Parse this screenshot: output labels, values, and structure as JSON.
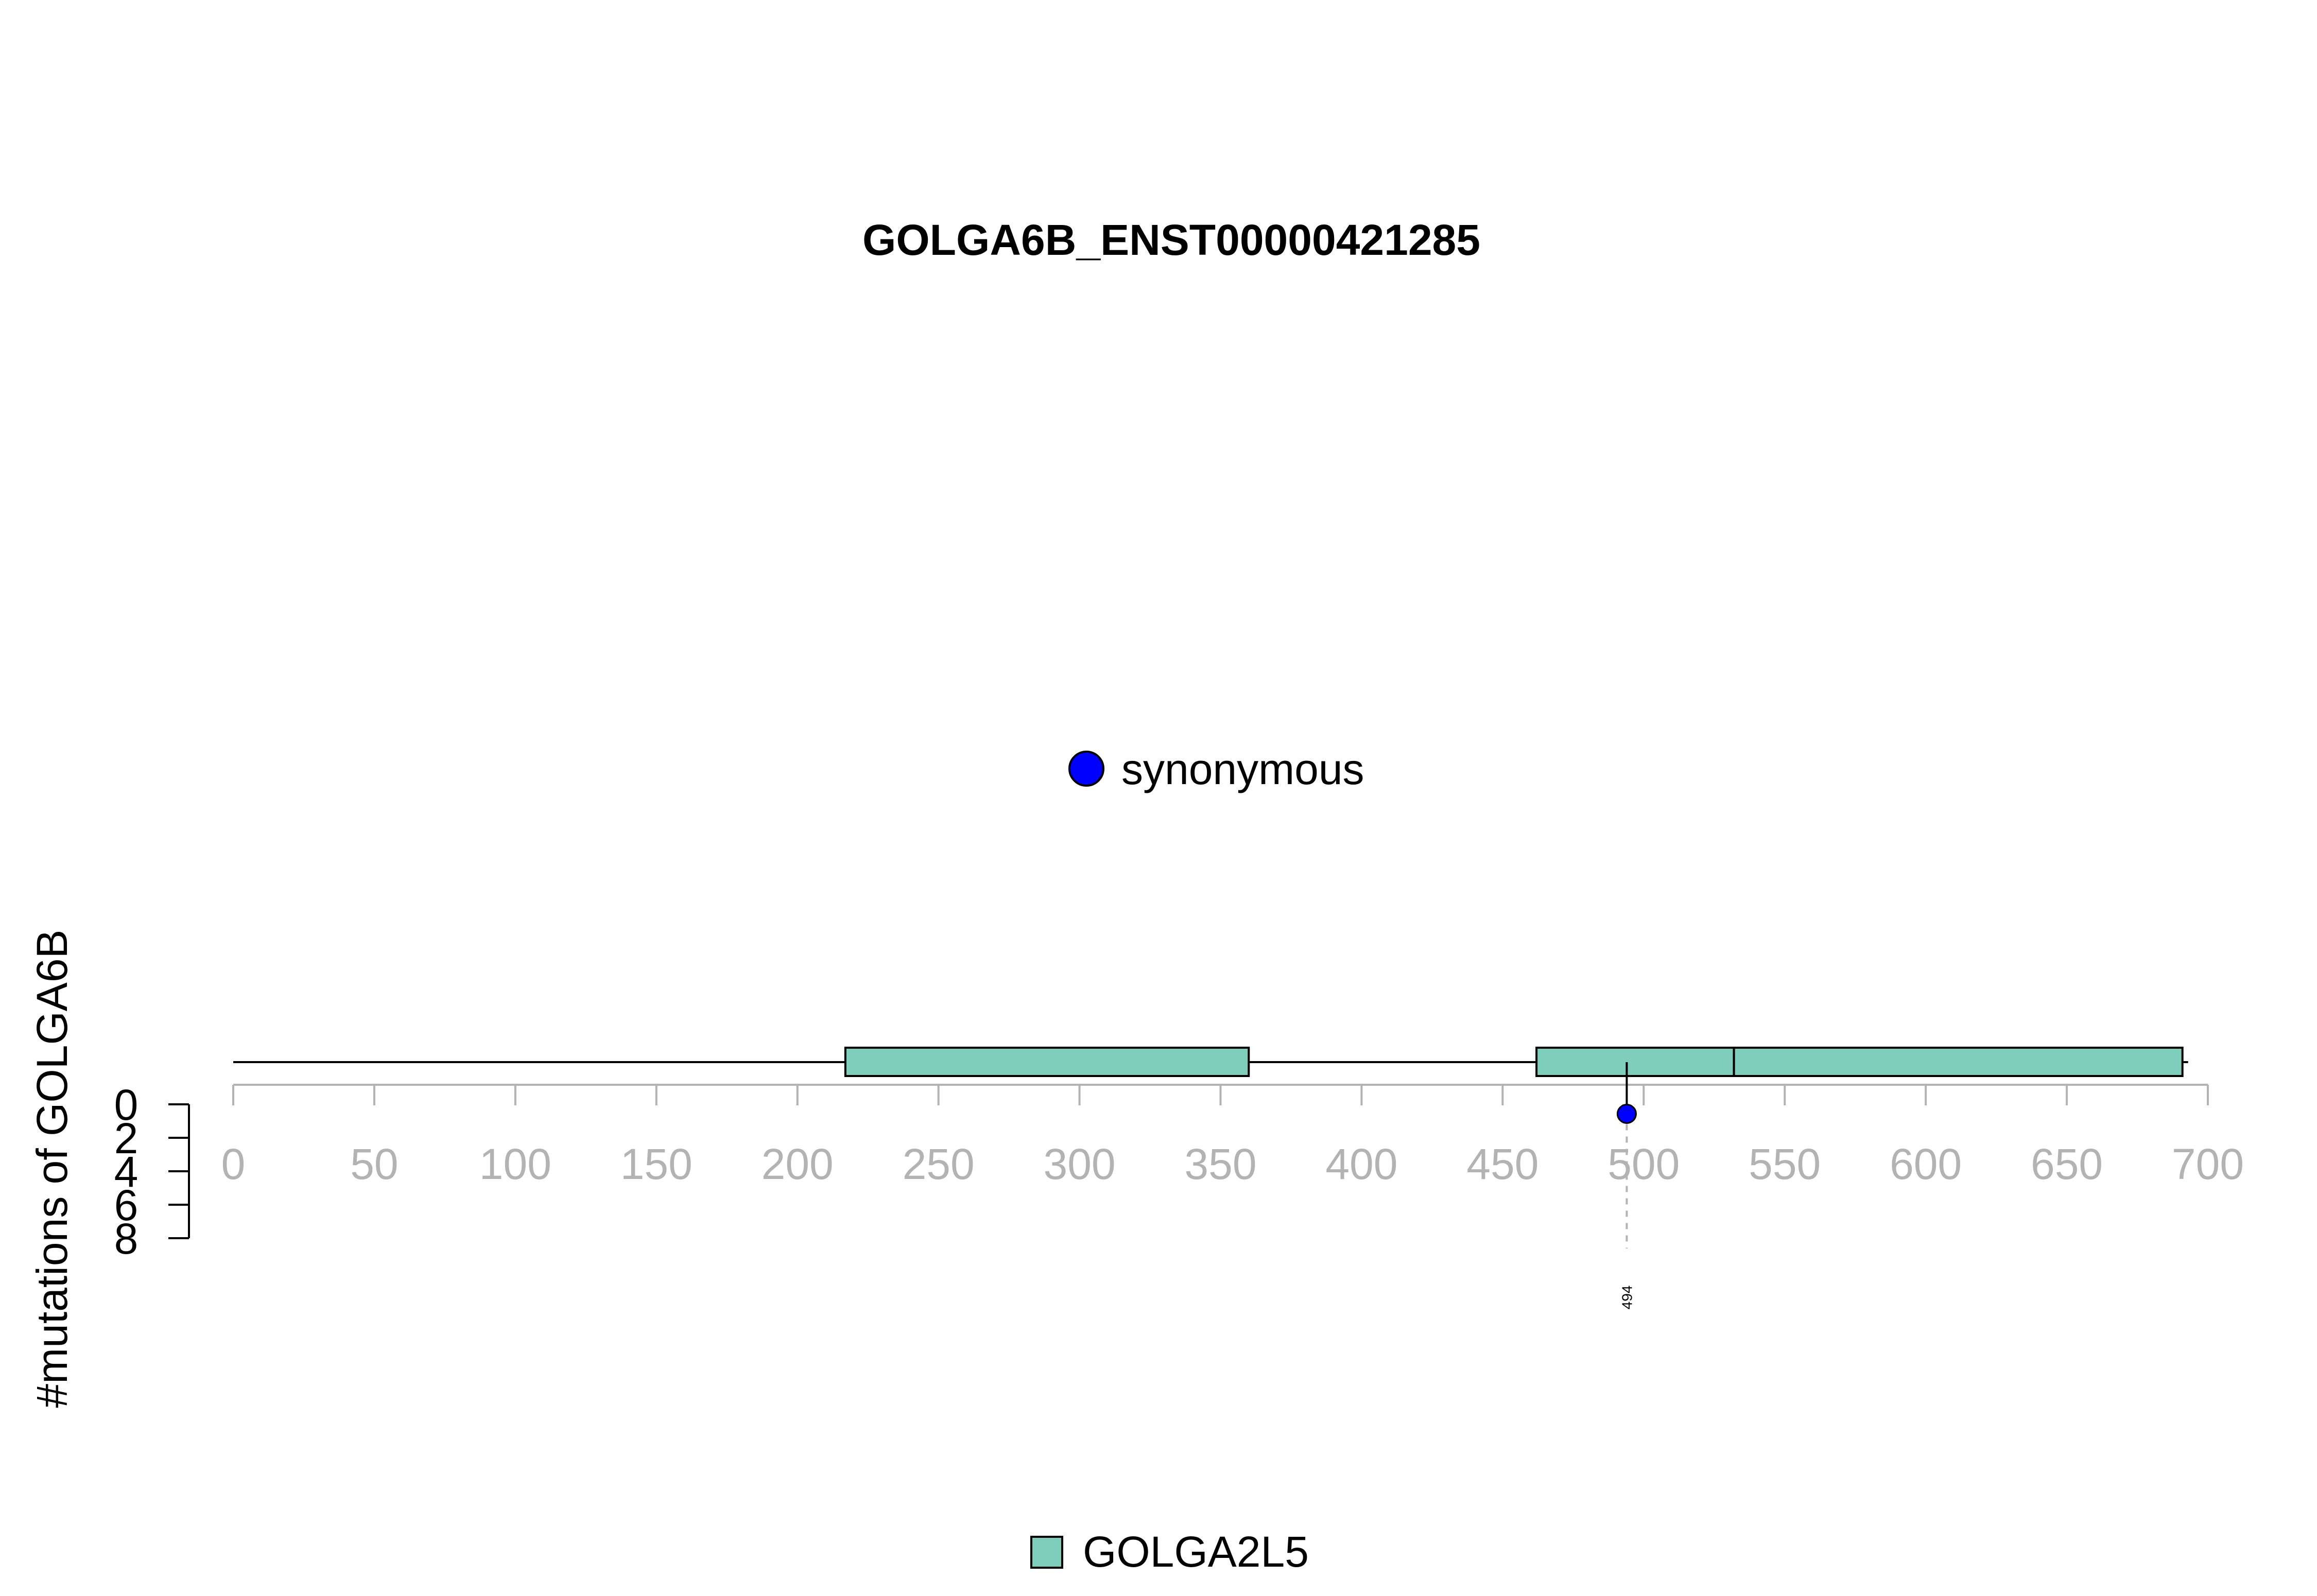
{
  "chart_data": {
    "type": "lollipop",
    "title": "GOLGA6B_ENST00000421285",
    "ylabel": "#mutations of GOLGA6B",
    "xlim": [
      0,
      700
    ],
    "x_ticks": [
      0,
      50,
      100,
      150,
      200,
      250,
      300,
      350,
      400,
      450,
      500,
      550,
      600,
      650,
      700
    ],
    "y_ticks": [
      0,
      2,
      4,
      6,
      8
    ],
    "ylim": [
      0,
      8
    ],
    "protein_length": 693,
    "domains": [
      {
        "name": "GOLGA2L5",
        "start": 217,
        "end": 360
      },
      {
        "name": "GOLGA2L5",
        "start": 462,
        "end": 532
      },
      {
        "name": "GOLGA2L5",
        "start": 532,
        "end": 691
      }
    ],
    "mutations": [
      {
        "position": 494,
        "count": 1,
        "type": "synonymous",
        "label": "494"
      }
    ],
    "mutation_legend": [
      {
        "label": "synonymous",
        "color": "#0000ff"
      }
    ],
    "domain_legend": [
      {
        "label": "GOLGA2L5",
        "color": "#7fcdbb"
      }
    ]
  }
}
